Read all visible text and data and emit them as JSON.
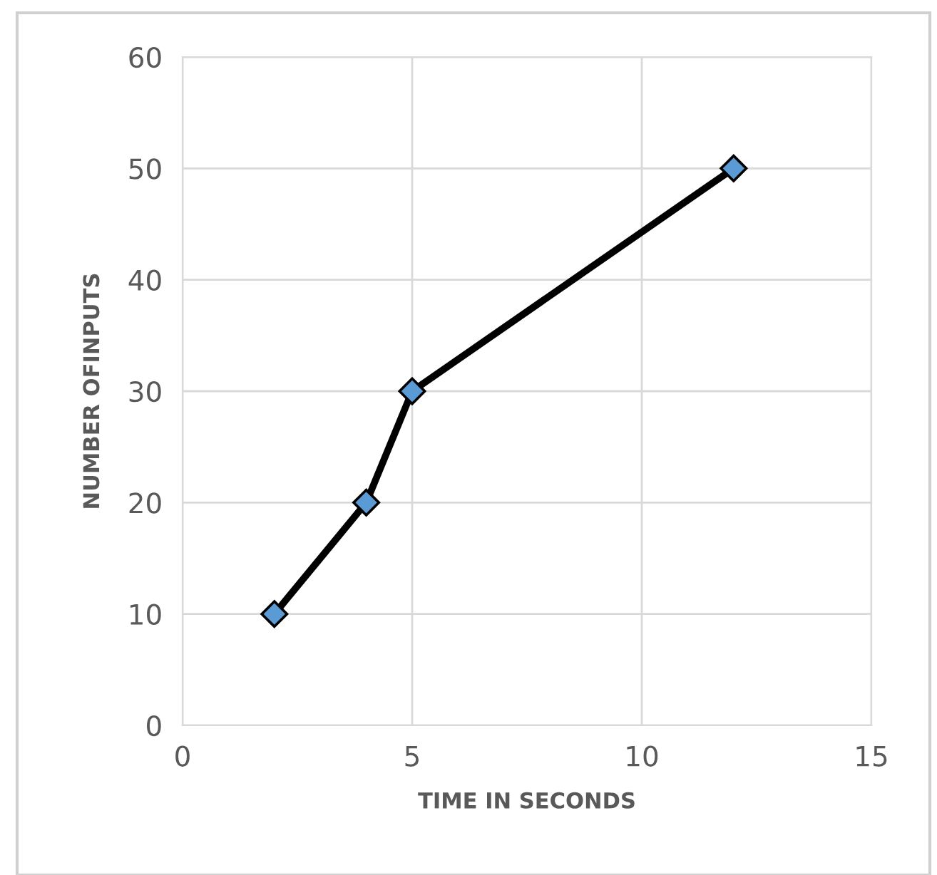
{
  "chart_data": {
    "type": "line",
    "xlabel": "TIME IN SECONDS",
    "ylabel": "NUMBER OFINPUTS",
    "x": [
      2,
      4,
      5,
      12
    ],
    "series": [
      {
        "color": "#000000",
        "values": [
          10,
          20,
          30,
          50
        ]
      }
    ],
    "xlim": [
      0,
      15
    ],
    "xticks": [
      0,
      5,
      10,
      15
    ],
    "ylim": [
      0,
      60
    ],
    "yticks": [
      0,
      10,
      20,
      30,
      40,
      50,
      60
    ],
    "grid": true,
    "marker": "diamond",
    "line_style": "solid",
    "legend": false
  }
}
